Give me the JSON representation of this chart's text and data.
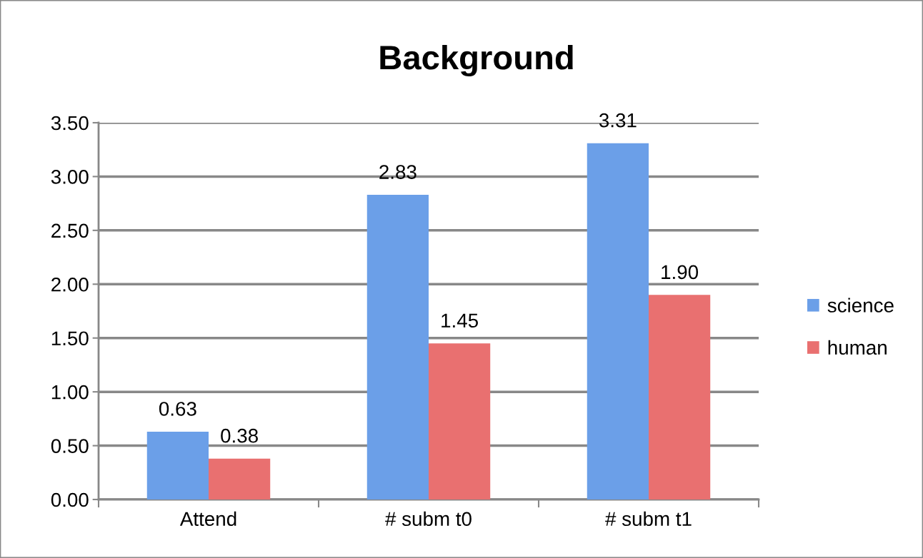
{
  "chart_data": {
    "type": "bar",
    "title": "Background",
    "categories": [
      "Attend",
      "# subm t0",
      "# subm t1"
    ],
    "series": [
      {
        "name": "science",
        "color": "#6b9fe8",
        "values": [
          0.63,
          2.83,
          3.31
        ],
        "value_labels": [
          "0.63",
          "2.83",
          "3.31"
        ]
      },
      {
        "name": "human",
        "color": "#e97070",
        "values": [
          0.38,
          1.45,
          1.9
        ],
        "value_labels": [
          "0.38",
          "1.45",
          "1.90"
        ]
      }
    ],
    "ylim": [
      0,
      3.5
    ],
    "yticks": [
      {
        "value": 0,
        "label": "0.00"
      },
      {
        "value": 0.5,
        "label": "0.50"
      },
      {
        "value": 1,
        "label": "1.00"
      },
      {
        "value": 1.5,
        "label": "1.50"
      },
      {
        "value": 2,
        "label": "2.00"
      },
      {
        "value": 2.5,
        "label": "2.50"
      },
      {
        "value": 3,
        "label": "3.00"
      },
      {
        "value": 3.5,
        "label": "3.50"
      }
    ],
    "grid": "y",
    "legend": "right"
  }
}
